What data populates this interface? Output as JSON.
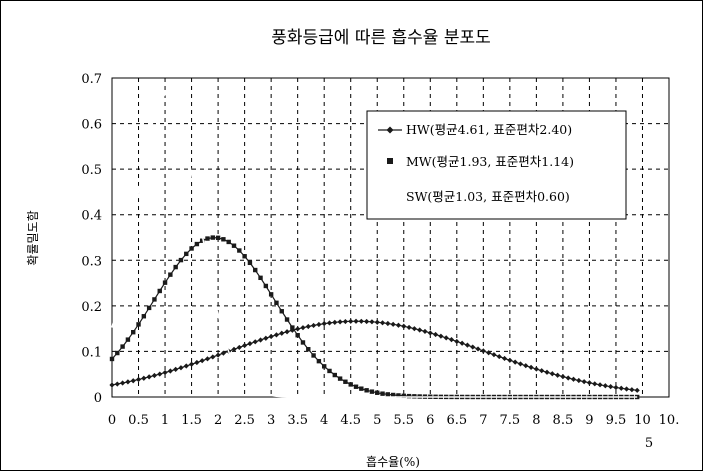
{
  "chart_data": {
    "type": "line",
    "title": "풍화등급에 따른 흡수율 분포도",
    "xlabel": "흡수율(%)",
    "ylabel": "확률밀도함",
    "xlim": [
      0,
      10.5
    ],
    "ylim": [
      0,
      0.7
    ],
    "grid": true,
    "legend_position": "top-right",
    "x_ticks": [
      "0",
      "0.5",
      "1",
      "1.5",
      "2",
      "2.5",
      "3",
      "3.5",
      "4",
      "4.5",
      "5",
      "5.5",
      "6",
      "6.5",
      "7",
      "7.5",
      "8",
      "8.5",
      "9",
      "9.5",
      "10"
    ],
    "x_tick_last_line1": "10.",
    "x_tick_last_line2": "5",
    "y_ticks": [
      "0",
      "0.1",
      "0.2",
      "0.3",
      "0.4",
      "0.5",
      "0.6",
      "0.7"
    ],
    "series": [
      {
        "name": "HW(평균4.61, 표준편차2.40)",
        "color": "#1a1a1a",
        "marker": "diamond",
        "mean": 4.61,
        "std": 2.4,
        "x_start": 0,
        "x_end": 9.9,
        "x_step": 0.1
      },
      {
        "name": "MW(평균1.93, 표준편차1.14)",
        "color": "#1a1a1a",
        "marker": "square",
        "mean": 1.93,
        "std": 1.14,
        "x_start": 0,
        "x_end": 9.9,
        "x_step": 0.1
      },
      {
        "name": "SW(평균1.03, 표준편차0.60)",
        "color": "#ffffff",
        "marker": "none",
        "mean": 1.03,
        "std": 0.6,
        "x_start": 0,
        "x_end": 9.9,
        "x_step": 0.1
      }
    ]
  }
}
